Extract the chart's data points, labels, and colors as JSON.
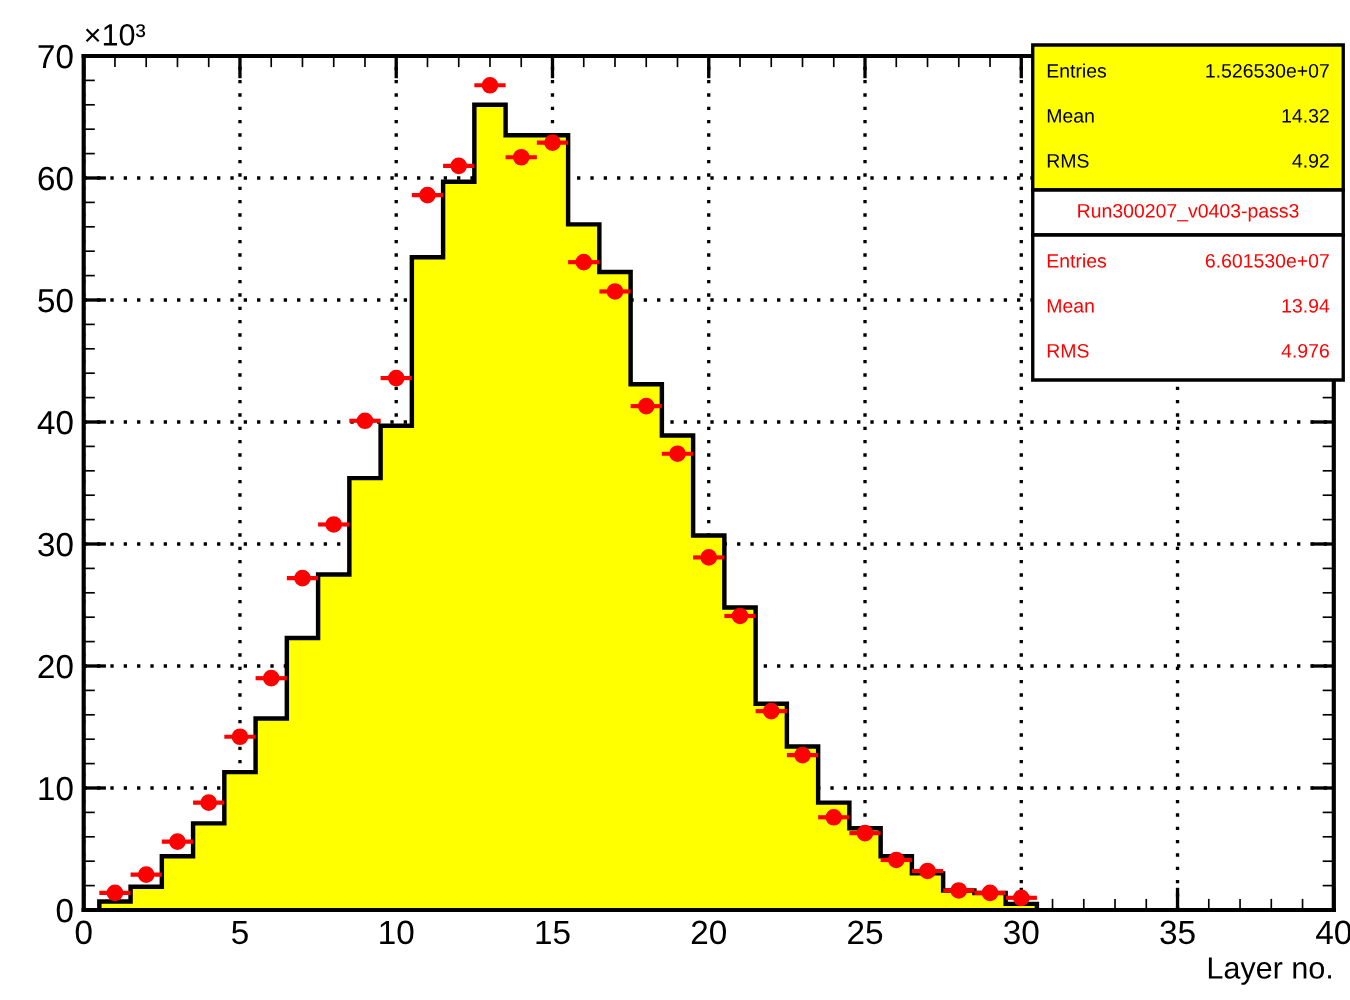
{
  "chart_data": {
    "type": "histogram",
    "xlabel": "Layer no.",
    "xlim": [
      0,
      40
    ],
    "ylim": [
      0,
      70
    ],
    "xticks": [
      0,
      5,
      10,
      15,
      20,
      25,
      30,
      35,
      40
    ],
    "yticks": [
      0,
      10,
      20,
      30,
      40,
      50,
      60,
      70
    ],
    "grid": true,
    "color": "#ffff00",
    "bins": [
      0.5,
      1.5,
      2.5,
      3.5,
      4.5,
      5.5,
      6.5,
      7.5,
      8.5,
      9.5,
      10.5,
      11.5,
      12.5,
      13.5,
      14.5,
      15.5,
      16.5,
      17.5,
      18.5,
      19.5,
      20.5,
      21.5,
      22.5,
      23.5,
      24.5,
      25.5,
      26.5,
      27.5,
      28.5,
      29.5,
      30.5
    ],
    "values": [
      0.7,
      1.9,
      4.4,
      7.1,
      11.3,
      15.7,
      22.3,
      27.5,
      35.4,
      39.7,
      53.5,
      59.7,
      66.0,
      63.5,
      63.5,
      56.2,
      52.3,
      43.1,
      38.9,
      30.7,
      24.8,
      16.9,
      13.4,
      8.8,
      6.7,
      4.4,
      3.0,
      1.6,
      1.4,
      0.5
    ],
    "series": [
      {
        "type": "scatter",
        "color": "#ff0000",
        "marker": "circle",
        "x": [
          1,
          2,
          3,
          4,
          5,
          6,
          7,
          8,
          9,
          10,
          11,
          12,
          13,
          14,
          15,
          16,
          17,
          18,
          19,
          20,
          21,
          22,
          23,
          24,
          25,
          26,
          27,
          28,
          29,
          30
        ],
        "values": [
          1.4,
          2.9,
          5.6,
          8.8,
          14.2,
          19.0,
          27.2,
          31.6,
          40.1,
          43.6,
          58.6,
          61.0,
          67.6,
          61.7,
          62.9,
          53.1,
          50.7,
          41.3,
          37.4,
          28.9,
          24.1,
          16.3,
          12.7,
          7.6,
          6.3,
          4.1,
          3.2,
          1.6,
          1.4,
          1.0
        ],
        "xerrors": [
          0.5,
          0.5,
          0.5,
          0.5,
          0.5,
          0.5,
          0.5,
          0.5,
          0.5,
          0.5,
          0.5,
          0.5,
          0.5,
          0.5,
          0.5,
          0.5,
          0.5,
          0.5,
          0.5,
          0.5,
          0.5,
          0.5,
          0.5,
          0.5,
          0.5,
          0.5,
          0.5,
          0.5,
          0.5,
          0.5
        ]
      }
    ],
    "annotations": [
      "×10³",
      "Entries",
      "1.526530e+07",
      "Mean",
      "14.32",
      "RMS",
      "4.92",
      "Run300207_v0403-pass3",
      "Entries",
      "6.601530e+07",
      "Mean",
      "13.94",
      "RMS",
      "4.976"
    ]
  }
}
